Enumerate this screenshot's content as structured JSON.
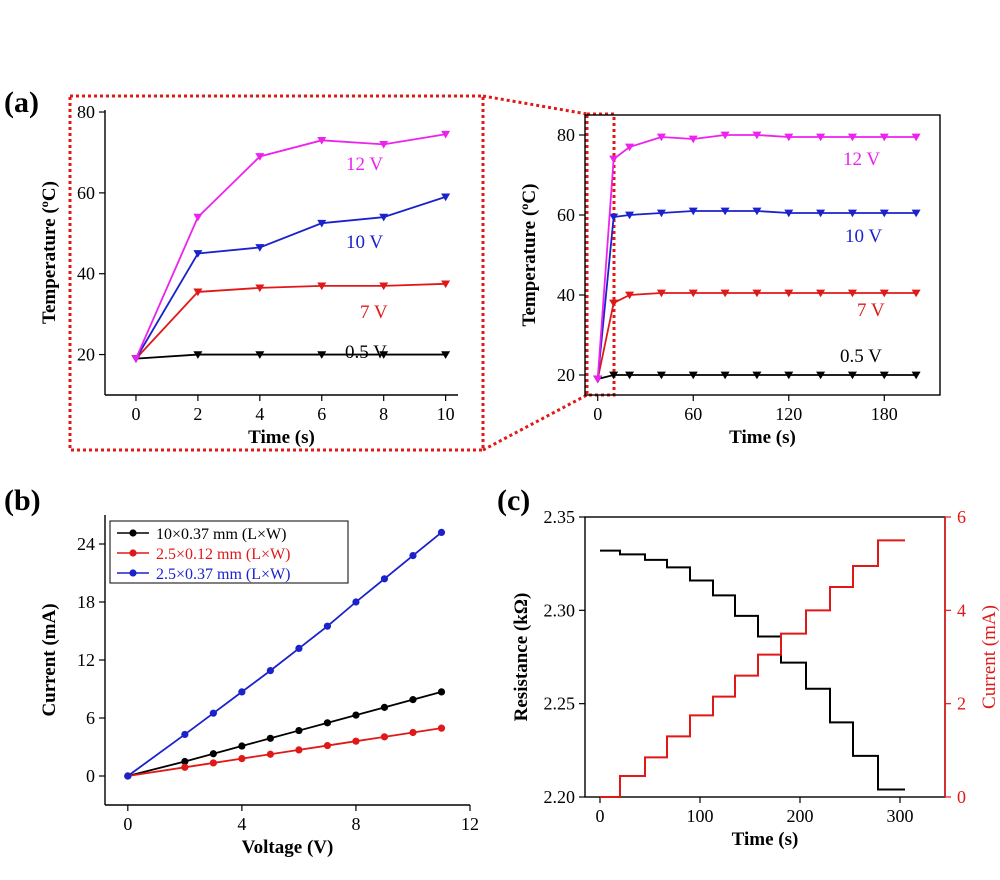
{
  "panels": [
    "(a)",
    "(b)",
    "(c)"
  ],
  "chart_data": [
    {
      "id": "a_zoom",
      "type": "line",
      "xlabel": "Time (s)",
      "ylabel": "Temperature (ºC)",
      "xlim": [
        -1,
        10.4
      ],
      "ylim": [
        10,
        80.5
      ],
      "xticks": [
        0,
        2,
        4,
        6,
        8,
        10
      ],
      "yticks": [
        20,
        40,
        60,
        80
      ],
      "x": [
        0,
        2,
        4,
        6,
        8,
        10
      ],
      "series": [
        {
          "name": "12 V",
          "color": "#ee22ee",
          "values": [
            19,
            54,
            69,
            73,
            72,
            74.5
          ]
        },
        {
          "name": "10 V",
          "color": "#1a22cc",
          "values": [
            19,
            45,
            46.5,
            52.5,
            54,
            59
          ]
        },
        {
          "name": "7 V",
          "color": "#e01818",
          "values": [
            19,
            35.5,
            36.5,
            37,
            37,
            37.5
          ]
        },
        {
          "name": "0.5 V",
          "color": "#000000",
          "values": [
            19,
            20,
            20,
            20,
            20,
            20
          ]
        }
      ]
    },
    {
      "id": "a_full",
      "type": "line",
      "xlabel": "Time (s)",
      "ylabel": "Temperature (ºC)",
      "xlim": [
        -8,
        215
      ],
      "ylim": [
        15,
        85
      ],
      "xticks": [
        0,
        60,
        120,
        180
      ],
      "yticks": [
        20,
        40,
        60,
        80
      ],
      "x": [
        0,
        10,
        20,
        40,
        60,
        80,
        100,
        120,
        140,
        160,
        180,
        200
      ],
      "series": [
        {
          "name": "12 V",
          "color": "#ee22ee",
          "values": [
            19,
            74,
            77,
            79.5,
            79,
            80,
            80,
            79.5,
            79.5,
            79.5,
            79.5,
            79.5
          ]
        },
        {
          "name": "10 V",
          "color": "#1a22cc",
          "values": [
            19,
            59.5,
            60,
            60.5,
            61,
            61,
            61,
            60.5,
            60.5,
            60.5,
            60.5,
            60.5
          ]
        },
        {
          "name": "7 V",
          "color": "#e01818",
          "values": [
            19,
            38,
            40,
            40.5,
            40.5,
            40.5,
            40.5,
            40.5,
            40.5,
            40.5,
            40.5,
            40.5
          ]
        },
        {
          "name": "0.5 V",
          "color": "#000000",
          "values": [
            19,
            20,
            20,
            20,
            20,
            20,
            20,
            20,
            20,
            20,
            20,
            20
          ]
        }
      ]
    },
    {
      "id": "b",
      "type": "line",
      "xlabel": "Voltage (V)",
      "ylabel": "Current (mA)",
      "xlim": [
        -0.8,
        12
      ],
      "ylim": [
        -3,
        27
      ],
      "xticks": [
        0,
        4,
        8,
        12
      ],
      "yticks": [
        0,
        6,
        12,
        18,
        24
      ],
      "x": [
        0,
        2,
        3,
        4,
        5,
        6,
        7,
        8,
        9,
        10,
        11
      ],
      "legend": "top-left",
      "series": [
        {
          "name": "10×0.37 mm (L×W)",
          "color": "#000000",
          "values": [
            0,
            1.5,
            2.3,
            3.1,
            3.9,
            4.7,
            5.5,
            6.3,
            7.1,
            7.9,
            8.7
          ]
        },
        {
          "name": "2.5×0.12 mm (L×W)",
          "color": "#e01818",
          "values": [
            0,
            0.9,
            1.35,
            1.8,
            2.25,
            2.7,
            3.15,
            3.6,
            4.05,
            4.5,
            4.95
          ]
        },
        {
          "name": "2.5×0.37 mm (L×W)",
          "color": "#1a22cc",
          "values": [
            0,
            4.3,
            6.5,
            8.7,
            10.9,
            13.2,
            15.5,
            18.0,
            20.4,
            22.8,
            25.2
          ]
        }
      ]
    },
    {
      "id": "c",
      "type": "line",
      "xlabel": "Time (s)",
      "ylabel": "Resistance (kΩ)",
      "ylabel_right": "Current (mA)",
      "xlim": [
        -15,
        345
      ],
      "ylim": [
        2.2,
        2.35
      ],
      "ylim_right": [
        0,
        6
      ],
      "xticks": [
        0,
        100,
        200,
        300
      ],
      "yticks": [
        "2.20",
        "2.25",
        "2.30",
        "2.35"
      ],
      "yticks_right": [
        0,
        2,
        4,
        6
      ],
      "series": [
        {
          "name": "Resistance",
          "color": "#000000",
          "axis": "left",
          "x": [
            0,
            20,
            20,
            45,
            45,
            67,
            67,
            90,
            90,
            113,
            113,
            135,
            135,
            158,
            158,
            181,
            181,
            206,
            206,
            230,
            230,
            253,
            253,
            278,
            278,
            305
          ],
          "values": [
            2.332,
            2.332,
            2.33,
            2.33,
            2.327,
            2.327,
            2.323,
            2.323,
            2.316,
            2.316,
            2.308,
            2.308,
            2.297,
            2.297,
            2.286,
            2.286,
            2.272,
            2.272,
            2.258,
            2.258,
            2.24,
            2.24,
            2.222,
            2.222,
            2.204,
            2.204
          ]
        },
        {
          "name": "Current",
          "color": "#e01818",
          "axis": "right",
          "x": [
            0,
            20,
            20,
            45,
            45,
            67,
            67,
            90,
            90,
            113,
            113,
            135,
            135,
            158,
            158,
            181,
            181,
            206,
            206,
            230,
            230,
            253,
            253,
            278,
            278,
            305
          ],
          "values": [
            0,
            0,
            0.45,
            0.45,
            0.85,
            0.85,
            1.3,
            1.3,
            1.75,
            1.75,
            2.15,
            2.15,
            2.6,
            2.6,
            3.05,
            3.05,
            3.5,
            3.5,
            4.0,
            4.0,
            4.5,
            4.5,
            4.95,
            4.95,
            5.5,
            5.5
          ]
        }
      ]
    }
  ]
}
